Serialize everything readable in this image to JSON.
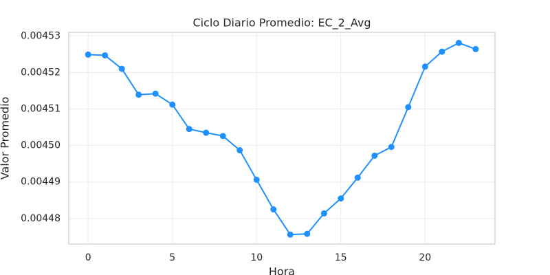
{
  "chart_data": {
    "type": "line",
    "title": "Ciclo Diario Promedio: EC_2_Avg",
    "xlabel": "Hora",
    "ylabel": "Valor Promedio",
    "x": [
      0,
      1,
      2,
      3,
      4,
      5,
      6,
      7,
      8,
      9,
      10,
      11,
      12,
      13,
      14,
      15,
      16,
      17,
      18,
      19,
      20,
      21,
      22,
      23
    ],
    "series": [
      {
        "name": "EC_2_Avg",
        "color": "#1e90ff",
        "values": [
          0.0045249,
          0.0045247,
          0.004521,
          0.0045139,
          0.0045142,
          0.0045112,
          0.0045045,
          0.0045035,
          0.0045026,
          0.0044987,
          0.0044906,
          0.0044825,
          0.0044756,
          0.0044758,
          0.0044814,
          0.0044855,
          0.0044912,
          0.0044972,
          0.0044996,
          0.0045105,
          0.0045216,
          0.0045257,
          0.0045281,
          0.0045264
        ]
      }
    ],
    "xlim": [
      -1.15,
      24.15
    ],
    "xticks": [
      0,
      5,
      10,
      15,
      20
    ],
    "ylim": [
      0.004473,
      0.004531
    ],
    "yticks": [
      0.00448,
      0.00449,
      {
        "value": 0.0045,
        "label": "0.00450"
      },
      0.00451,
      0.00452,
      0.00453
    ],
    "grid": true
  }
}
